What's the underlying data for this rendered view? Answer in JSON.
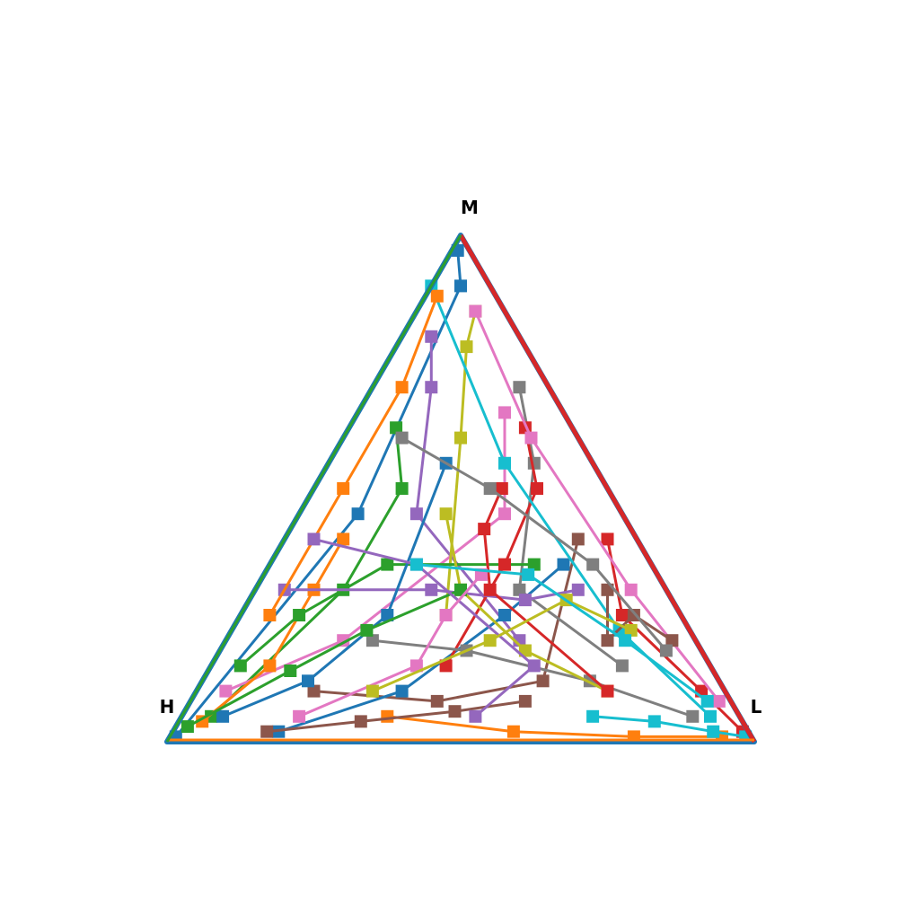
{
  "chart_data": {
    "type": "scatter",
    "plot_kind": "ternary-trajectories",
    "vertex_labels": {
      "top": "M",
      "left": "H",
      "right": "L"
    },
    "components": [
      "H",
      "M",
      "L"
    ],
    "title": "",
    "grid": false,
    "legend": "none",
    "palette": [
      "#1f77b4",
      "#ff7f0e",
      "#2ca02c",
      "#d62728",
      "#9467bd",
      "#8c564b",
      "#e377c2",
      "#7f7f7f",
      "#bcbd22",
      "#17becf"
    ],
    "marker": "square",
    "series": [
      {
        "color": "#1f77b4",
        "points": [
          [
            0.98,
            0.01,
            0.01
          ],
          [
            0.45,
            0.45,
            0.1
          ],
          [
            0.05,
            0.9,
            0.05
          ],
          [
            0.02,
            0.97,
            0.01
          ]
        ]
      },
      {
        "color": "#ff7f0e",
        "points": [
          [
            0.6,
            0.05,
            0.35
          ],
          [
            0.4,
            0.02,
            0.58
          ],
          [
            0.2,
            0.01,
            0.79
          ],
          [
            0.05,
            0.01,
            0.94
          ]
        ]
      },
      {
        "color": "#2ca02c",
        "points": [
          [
            0.9,
            0.05,
            0.05
          ],
          [
            0.55,
            0.3,
            0.15
          ],
          [
            0.35,
            0.5,
            0.15
          ],
          [
            0.3,
            0.62,
            0.08
          ]
        ]
      },
      {
        "color": "#d62728",
        "points": [
          [
            0.05,
            0.4,
            0.55
          ],
          [
            0.1,
            0.25,
            0.65
          ],
          [
            0.04,
            0.1,
            0.86
          ],
          [
            0.01,
            0.02,
            0.97
          ]
        ]
      },
      {
        "color": "#9467bd",
        "points": [
          [
            0.3,
            0.2,
            0.5
          ],
          [
            0.35,
            0.45,
            0.2
          ],
          [
            0.2,
            0.7,
            0.1
          ],
          [
            0.15,
            0.8,
            0.05
          ]
        ]
      },
      {
        "color": "#8c564b",
        "points": [
          [
            0.7,
            0.1,
            0.2
          ],
          [
            0.5,
            0.08,
            0.42
          ],
          [
            0.3,
            0.12,
            0.58
          ],
          [
            0.1,
            0.4,
            0.5
          ]
        ]
      },
      {
        "color": "#e377c2",
        "points": [
          [
            0.1,
            0.65,
            0.25
          ],
          [
            0.2,
            0.45,
            0.35
          ],
          [
            0.6,
            0.2,
            0.2
          ],
          [
            0.85,
            0.1,
            0.05
          ]
        ]
      },
      {
        "color": "#7f7f7f",
        "points": [
          [
            0.15,
            0.15,
            0.7
          ],
          [
            0.25,
            0.3,
            0.45
          ],
          [
            0.1,
            0.55,
            0.35
          ],
          [
            0.05,
            0.7,
            0.25
          ]
        ]
      },
      {
        "color": "#bcbd22",
        "points": [
          [
            0.4,
            0.25,
            0.35
          ],
          [
            0.2,
            0.6,
            0.2
          ],
          [
            0.1,
            0.78,
            0.12
          ],
          [
            0.05,
            0.85,
            0.1
          ]
        ]
      },
      {
        "color": "#17becf",
        "points": [
          [
            0.25,
            0.05,
            0.7
          ],
          [
            0.15,
            0.04,
            0.81
          ],
          [
            0.06,
            0.02,
            0.92
          ],
          [
            0.01,
            0.01,
            0.98
          ]
        ]
      },
      {
        "color": "#1f77b4",
        "points": [
          [
            0.8,
            0.02,
            0.18
          ],
          [
            0.55,
            0.1,
            0.35
          ],
          [
            0.3,
            0.25,
            0.45
          ],
          [
            0.15,
            0.35,
            0.5
          ]
        ]
      },
      {
        "color": "#ff7f0e",
        "points": [
          [
            0.5,
            0.4,
            0.1
          ],
          [
            0.6,
            0.3,
            0.1
          ],
          [
            0.75,
            0.15,
            0.1
          ],
          [
            0.92,
            0.04,
            0.04
          ]
        ]
      },
      {
        "color": "#2ca02c",
        "points": [
          [
            0.2,
            0.35,
            0.45
          ],
          [
            0.45,
            0.35,
            0.2
          ],
          [
            0.65,
            0.25,
            0.1
          ],
          [
            0.8,
            0.15,
            0.05
          ]
        ]
      },
      {
        "color": "#d62728",
        "points": [
          [
            0.45,
            0.15,
            0.4
          ],
          [
            0.25,
            0.35,
            0.4
          ],
          [
            0.12,
            0.5,
            0.38
          ],
          [
            0.08,
            0.62,
            0.3
          ]
        ]
      },
      {
        "color": "#9467bd",
        "points": [
          [
            0.65,
            0.3,
            0.05
          ],
          [
            0.4,
            0.3,
            0.3
          ],
          [
            0.25,
            0.28,
            0.47
          ],
          [
            0.15,
            0.3,
            0.55
          ]
        ]
      },
      {
        "color": "#8c564b",
        "points": [
          [
            0.35,
            0.08,
            0.57
          ],
          [
            0.48,
            0.06,
            0.46
          ],
          [
            0.65,
            0.04,
            0.31
          ],
          [
            0.82,
            0.02,
            0.16
          ]
        ]
      },
      {
        "color": "#e377c2",
        "points": [
          [
            0.05,
            0.85,
            0.1
          ],
          [
            0.08,
            0.6,
            0.32
          ],
          [
            0.06,
            0.3,
            0.64
          ],
          [
            0.02,
            0.08,
            0.9
          ]
        ]
      },
      {
        "color": "#7f7f7f",
        "points": [
          [
            0.55,
            0.2,
            0.25
          ],
          [
            0.4,
            0.18,
            0.42
          ],
          [
            0.22,
            0.12,
            0.66
          ],
          [
            0.08,
            0.05,
            0.87
          ]
        ]
      },
      {
        "color": "#bcbd22",
        "points": [
          [
            0.3,
            0.45,
            0.25
          ],
          [
            0.35,
            0.3,
            0.35
          ],
          [
            0.3,
            0.18,
            0.52
          ],
          [
            0.2,
            0.1,
            0.7
          ]
        ]
      },
      {
        "color": "#17becf",
        "points": [
          [
            0.1,
            0.9,
            0.0
          ],
          [
            0.15,
            0.55,
            0.3
          ],
          [
            0.12,
            0.22,
            0.66
          ],
          [
            0.05,
            0.05,
            0.9
          ]
        ]
      },
      {
        "color": "#1f77b4",
        "points": [
          [
            0.25,
            0.55,
            0.2
          ],
          [
            0.5,
            0.25,
            0.25
          ],
          [
            0.7,
            0.12,
            0.18
          ],
          [
            0.88,
            0.05,
            0.07
          ]
        ]
      },
      {
        "color": "#ff7f0e",
        "points": [
          [
            0.7,
            0.25,
            0.05
          ],
          [
            0.45,
            0.5,
            0.05
          ],
          [
            0.25,
            0.7,
            0.05
          ],
          [
            0.1,
            0.88,
            0.02
          ]
        ]
      },
      {
        "color": "#2ca02c",
        "points": [
          [
            0.35,
            0.3,
            0.35
          ],
          [
            0.55,
            0.22,
            0.23
          ],
          [
            0.72,
            0.14,
            0.14
          ],
          [
            0.95,
            0.03,
            0.02
          ]
        ]
      },
      {
        "color": "#d62728",
        "points": [
          [
            0.2,
            0.1,
            0.7
          ],
          [
            0.3,
            0.3,
            0.4
          ],
          [
            0.25,
            0.42,
            0.33
          ],
          [
            0.18,
            0.5,
            0.32
          ]
        ]
      },
      {
        "color": "#9467bd",
        "points": [
          [
            0.45,
            0.05,
            0.5
          ],
          [
            0.3,
            0.15,
            0.55
          ],
          [
            0.4,
            0.35,
            0.25
          ],
          [
            0.55,
            0.4,
            0.05
          ]
        ]
      },
      {
        "color": "#8c564b",
        "points": [
          [
            0.1,
            0.3,
            0.6
          ],
          [
            0.15,
            0.2,
            0.65
          ],
          [
            0.08,
            0.25,
            0.67
          ],
          [
            0.04,
            0.2,
            0.76
          ]
        ]
      },
      {
        "color": "#e377c2",
        "points": [
          [
            0.75,
            0.05,
            0.2
          ],
          [
            0.5,
            0.15,
            0.35
          ],
          [
            0.4,
            0.25,
            0.35
          ],
          [
            0.3,
            0.33,
            0.37
          ]
        ]
      },
      {
        "color": "#7f7f7f",
        "points": [
          [
            0.3,
            0.6,
            0.1
          ],
          [
            0.2,
            0.5,
            0.3
          ],
          [
            0.1,
            0.35,
            0.55
          ],
          [
            0.06,
            0.18,
            0.76
          ]
        ]
      },
      {
        "color": "#bcbd22",
        "points": [
          [
            0.6,
            0.1,
            0.3
          ],
          [
            0.35,
            0.2,
            0.45
          ],
          [
            0.18,
            0.28,
            0.54
          ],
          [
            0.1,
            0.22,
            0.68
          ]
        ]
      },
      {
        "color": "#17becf",
        "points": [
          [
            0.4,
            0.35,
            0.25
          ],
          [
            0.22,
            0.33,
            0.45
          ],
          [
            0.12,
            0.2,
            0.68
          ],
          [
            0.04,
            0.08,
            0.88
          ]
        ]
      }
    ]
  }
}
